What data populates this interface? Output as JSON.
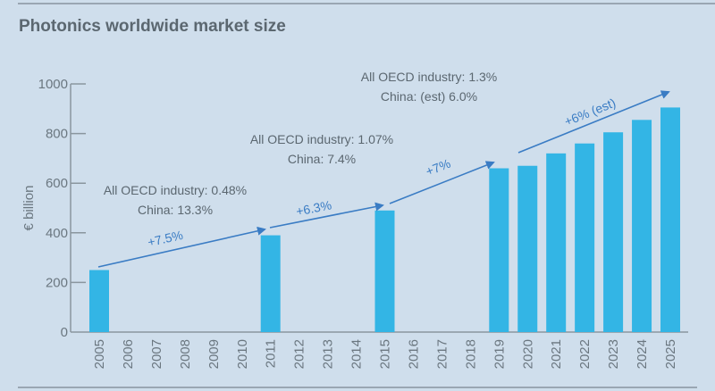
{
  "chart_data": {
    "type": "bar",
    "title": "Photonics worldwide market size",
    "xlabel": "",
    "ylabel": "€ billion",
    "ylim": [
      0,
      1000
    ],
    "yticks": [
      0,
      200,
      400,
      600,
      800,
      1000
    ],
    "grid": false,
    "categories": [
      "2005",
      "2006",
      "2007",
      "2008",
      "2009",
      "2010",
      "2011",
      "2012",
      "2013",
      "2014",
      "2015",
      "2016",
      "2017",
      "2018",
      "2019",
      "2020",
      "2021",
      "2022",
      "2023",
      "2024",
      "2025"
    ],
    "values": [
      250,
      null,
      null,
      null,
      null,
      null,
      390,
      null,
      null,
      null,
      490,
      null,
      null,
      null,
      660,
      670,
      720,
      760,
      805,
      855,
      905
    ],
    "bar_color": "#33b5e5",
    "arrow_color": "#3a7cc4",
    "growth_arrows": [
      {
        "from": "2005",
        "to": "2011",
        "label": "+7.5%"
      },
      {
        "from": "2011",
        "to": "2015",
        "label": "+6.3%"
      },
      {
        "from": "2015",
        "to": "2019",
        "label": "+7%"
      },
      {
        "from": "2020",
        "to": "2025",
        "label": "+6% (est)"
      }
    ],
    "annotations": [
      {
        "line1": "All OECD industry: 0.48%",
        "line2": "China: 13.3%"
      },
      {
        "line1": "All OECD industry: 1.07%",
        "line2": "China: 7.4%"
      },
      {
        "line1": "All OECD industry: 1.3%",
        "line2": "China: (est) 6.0%"
      }
    ]
  }
}
